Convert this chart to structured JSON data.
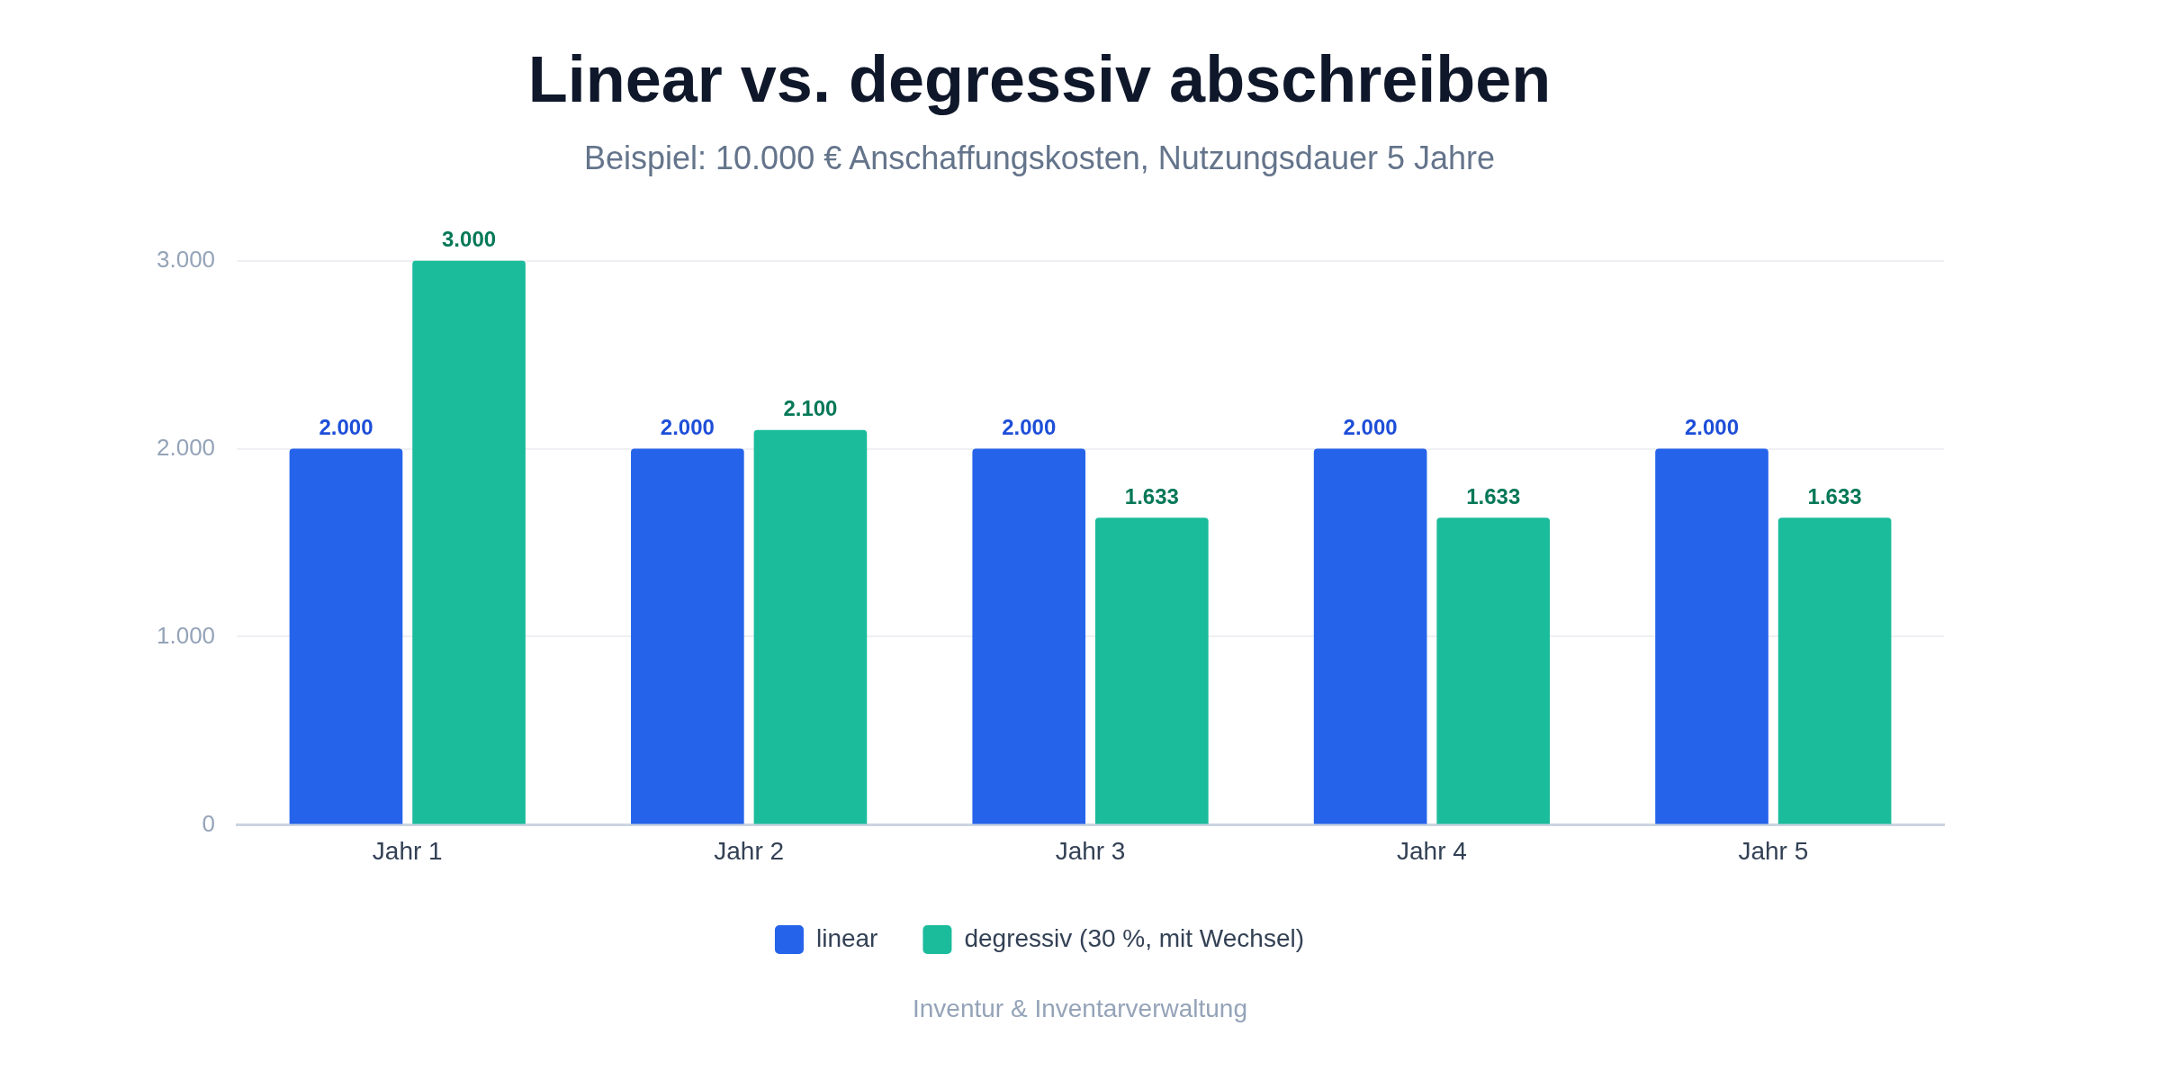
{
  "chart_data": {
    "type": "bar",
    "title": "Linear vs. degressiv abschreiben",
    "subtitle": "Beispiel: 10.000 € Anschaffungskosten, Nutzungsdauer 5 Jahre",
    "categories": [
      "Jahr 1",
      "Jahr 2",
      "Jahr 3",
      "Jahr 4",
      "Jahr 5"
    ],
    "series": [
      {
        "name": "linear",
        "color": "#2563eb",
        "values": [
          2000,
          2000,
          2000,
          2000,
          2000
        ],
        "value_labels": [
          "2.000",
          "2.000",
          "2.000",
          "2.000",
          "2.000"
        ]
      },
      {
        "name": "degressiv (30 %, mit Wechsel)",
        "color": "#1abc9c",
        "values": [
          3000,
          2100,
          1633,
          1633,
          1633
        ],
        "value_labels": [
          "3.000",
          "2.100",
          "1.633",
          "1.633",
          "1.633"
        ]
      }
    ],
    "ylim": [
      0,
      3000
    ],
    "yticks": [
      {
        "value": 0,
        "label": "0"
      },
      {
        "value": 1000,
        "label": "1.000"
      },
      {
        "value": 2000,
        "label": "2.000"
      },
      {
        "value": 3000,
        "label": "3.000"
      }
    ],
    "grid": "y",
    "legend": "bottom",
    "annotations": [
      "Inventur & Inventarverwaltung"
    ]
  }
}
